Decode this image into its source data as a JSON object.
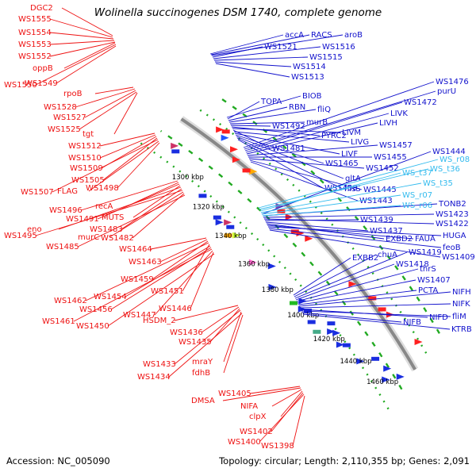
{
  "title": "Wolinella succinogenes DSM 1740, complete genome",
  "footer": {
    "accession": "Accession: NC_005090",
    "summary": "Topology: circular; Length: 2,110,355 bp; Genes: 2,091"
  },
  "colors": {
    "left_labels": "#ee1111",
    "right_labels": "#1111cc",
    "rna_labels": "#33bbee",
    "backbone": "#888888",
    "ticks": "#22aa22"
  },
  "scale_labels": [
    "1460 kbp",
    "1440 kbp",
    "1420 kbp",
    "1400 kbp",
    "1380 kbp",
    "1360 kbp",
    "1340 kbp",
    "1320 kbp",
    "1300 kbp"
  ],
  "left_genes": [
    "DGC2",
    "WS1555",
    "WS1554",
    "WS1553",
    "WS1552",
    "oppB",
    "WS1550",
    "WS1549",
    "rpoB",
    "WS1528",
    "WS1527",
    "WS1525",
    "tgt",
    "WS1512",
    "WS1510",
    "WS1509",
    "WS1505",
    "WS1507",
    "FLAG",
    "WS1498",
    "WS1496",
    "recA",
    "WS1491",
    "MUTS",
    "eno",
    "WS1483",
    "WS1495",
    "murC",
    "WS1482",
    "WS1485",
    "WS1464",
    "WS1463",
    "WS1459",
    "WS1462",
    "WS1451",
    "WS1454",
    "WS1456",
    "WS1461",
    "WS1447",
    "WS1446",
    "WS1450",
    "HSDM_2",
    "WS1436",
    "WS1435",
    "WS1433",
    "mraY",
    "WS1434",
    "fdhB",
    "WS1405",
    "DMSA",
    "NIFA",
    "clpX",
    "WS1402",
    "WS1400",
    "WS1398"
  ],
  "right_genes": [
    "accA",
    "RACS",
    "aroB",
    "WS1521",
    "WS1516",
    "WS1515",
    "WS1514",
    "WS1513",
    "BIOB",
    "TOPA",
    "RBN",
    "fliQ",
    "murB",
    "WS1492",
    "PYRC2",
    "LIVM",
    "WS1481",
    "LIVG",
    "LIVF",
    "WS1465",
    "gltA",
    "hisS",
    "WS1458",
    "WS1476",
    "purU",
    "WS1472",
    "LIVK",
    "LIVH",
    "WS1457",
    "WS1455",
    "WS1452",
    "WS1445",
    "WS1443",
    "WS1444",
    "TONB2",
    "WS1423",
    "WS1422",
    "WS1439",
    "WS1437",
    "EXBD2",
    "FAUA",
    "HUGA",
    "feoB",
    "WS1409",
    "EXBB2",
    "chuA",
    "WS1419",
    "WS1418",
    "thrS",
    "WS1407",
    "PCTA",
    "NIFH",
    "NIFK",
    "NIFD",
    "fliM",
    "NIFB",
    "KTRB"
  ],
  "rna_genes": [
    "WS_r08",
    "WS_t36",
    "WS_t37",
    "WS_t35",
    "WS_r07",
    "WS_r06"
  ]
}
